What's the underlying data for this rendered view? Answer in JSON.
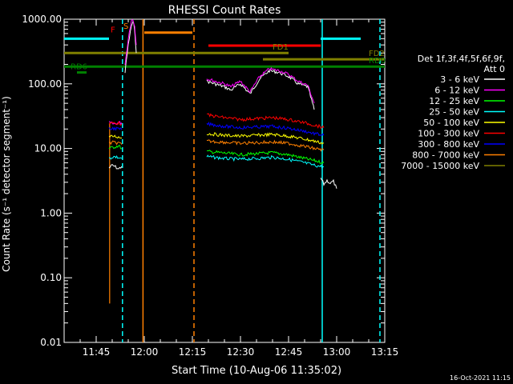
{
  "chart_data": {
    "type": "line",
    "title": "RHESSI Count Rates",
    "xlabel": "Start Time (10-Aug-06 11:35:02)",
    "ylabel": "Count Rate (s⁻¹ detector segment⁻¹)",
    "yscale": "log",
    "ylim": [
      0.01,
      1000
    ],
    "xlim_minutes_after_11_35": [
      0,
      100
    ],
    "x_ticks": [
      {
        "label": "11:45",
        "min": 10
      },
      {
        "label": "12:00",
        "min": 25
      },
      {
        "label": "12:15",
        "min": 40
      },
      {
        "label": "12:30",
        "min": 55
      },
      {
        "label": "12:45",
        "min": 70
      },
      {
        "label": "13:00",
        "min": 85
      },
      {
        "label": "13:15",
        "min": 100
      }
    ],
    "y_ticks": [
      {
        "label": "0.01",
        "v": 0.01
      },
      {
        "label": "0.10",
        "v": 0.1
      },
      {
        "label": "1.00",
        "v": 1
      },
      {
        "label": "10.00",
        "v": 10
      },
      {
        "label": "100.00",
        "v": 100
      },
      {
        "label": "1000.00",
        "v": 1000
      }
    ],
    "legend_header": [
      "Det 1f,3f,4f,5f,6f,9f,",
      "Att 0"
    ],
    "legend_placement": "right",
    "series": [
      {
        "name": "3 - 6 keV",
        "color": "#ffffff",
        "segments": [
          {
            "t": [
              14.0,
              15.0,
              16.0,
              17.0,
              18.0
            ],
            "v": [
              5.0,
              5.5,
              5.2,
              4.8,
              5.3
            ]
          },
          {
            "t": [
              19.0,
              20.0,
              21.0,
              21.5,
              22.0,
              22.5
            ],
            "v": [
              150,
              400,
              800,
              900,
              700,
              300
            ]
          },
          {
            "t": [
              44.5,
              47,
              50,
              52,
              55,
              58,
              61,
              64,
              67,
              70,
              73,
              76,
              78
            ],
            "v": [
              110,
              100,
              90,
              80,
              100,
              70,
              120,
              160,
              150,
              130,
              100,
              90,
              40
            ]
          },
          {
            "t": [
              80,
              81,
              82,
              83,
              84,
              85
            ],
            "v": [
              3.5,
              2.8,
              3.2,
              2.9,
              3.1,
              2.4
            ]
          }
        ]
      },
      {
        "name": "6 - 12 keV",
        "color": "#ff00ff",
        "segments": [
          {
            "t": [
              14.0,
              15.5,
              17.0,
              18.0
            ],
            "v": [
              25,
              24,
              25,
              25
            ]
          },
          {
            "t": [
              19.0,
              20.0,
              21.0,
              21.5,
              22.0,
              22.5
            ],
            "v": [
              200,
              500,
              1000,
              950,
              800,
              400
            ]
          },
          {
            "t": [
              44.5,
              47,
              50,
              52,
              55,
              58,
              61,
              64,
              67,
              70,
              73,
              76,
              78
            ],
            "v": [
              120,
              110,
              100,
              90,
              110,
              75,
              130,
              170,
              160,
              140,
              110,
              95,
              50
            ]
          }
        ]
      },
      {
        "name": "12 - 25 keV",
        "color": "#00ff00",
        "segments": [
          {
            "t": [
              14.0,
              15.5,
              17.0,
              18.0
            ],
            "v": [
              10,
              10.5,
              11,
              10
            ]
          },
          {
            "t": [
              44.5,
              50,
              55,
              60,
              65,
              70,
              75,
              78,
              81
            ],
            "v": [
              9,
              8.5,
              8,
              8.3,
              8.6,
              8,
              7,
              6.5,
              6
            ]
          }
        ]
      },
      {
        "name": "25 - 50 keV",
        "color": "#00ffff",
        "segments": [
          {
            "t": [
              14.0,
              15.5,
              17.0,
              18.0
            ],
            "v": [
              7,
              7.5,
              7.2,
              7
            ]
          },
          {
            "t": [
              44.5,
              50,
              55,
              60,
              65,
              70,
              75,
              78,
              81
            ],
            "v": [
              7.5,
              7,
              6.8,
              7,
              7.3,
              6.8,
              6,
              5.5,
              5.2
            ]
          }
        ]
      },
      {
        "name": "50 - 100 keV",
        "color": "#ffff00",
        "segments": [
          {
            "t": [
              14.0,
              15.5,
              17.0,
              18.0
            ],
            "v": [
              15,
              15.5,
              15,
              14.5
            ]
          },
          {
            "t": [
              44.5,
              50,
              55,
              60,
              65,
              70,
              75,
              78,
              81
            ],
            "v": [
              17,
              16,
              15.5,
              16,
              16.5,
              15.5,
              14,
              13,
              12
            ]
          }
        ]
      },
      {
        "name": "100 - 300 keV",
        "color": "#ff0000",
        "segments": [
          {
            "t": [
              14.0,
              15.5,
              17.0,
              18.0
            ],
            "v": [
              24,
              25,
              24.5,
              24
            ]
          },
          {
            "t": [
              44.5,
              50,
              55,
              60,
              65,
              70,
              75,
              78,
              81
            ],
            "v": [
              33,
              30,
              28,
              29,
              30,
              28,
              25,
              23,
              21
            ]
          }
        ]
      },
      {
        "name": "300 - 800 keV",
        "color": "#0000ff",
        "segments": [
          {
            "t": [
              14.0,
              15.5,
              17.0,
              18.0
            ],
            "v": [
              20,
              20.5,
              20,
              19.5
            ]
          },
          {
            "t": [
              44.5,
              50,
              55,
              60,
              65,
              70,
              75,
              78,
              81
            ],
            "v": [
              24,
              22,
              21,
              21.5,
              22,
              20.5,
              18.5,
              17,
              16
            ]
          }
        ]
      },
      {
        "name": "800 - 7000 keV",
        "color": "#ff8000",
        "segments": [
          {
            "t": [
              14.0,
              15.5,
              17.0,
              18.0
            ],
            "v": [
              12,
              12.5,
              12,
              11.5
            ]
          },
          {
            "t": [
              44.5,
              50,
              55,
              60,
              65,
              70,
              75,
              78,
              81
            ],
            "v": [
              13,
              12.5,
              12,
              12.3,
              12.6,
              12,
              10.8,
              10,
              9.5
            ]
          }
        ]
      },
      {
        "name": "7000 - 15000 keV",
        "color": "#808000",
        "segments": []
      }
    ],
    "flags": [
      {
        "label": "",
        "color": "#00ffff",
        "y": 500,
        "t0": 0,
        "t1": 14
      },
      {
        "label": "",
        "color": "#00ffff",
        "y": 500,
        "t0": 80,
        "t1": 92.5
      },
      {
        "label": "",
        "color": "#ff8000",
        "y": 620,
        "t0": 25,
        "t1": 40
      },
      {
        "label": "",
        "color": "#ff0000",
        "y": 390,
        "t0": 45,
        "t1": 80
      },
      {
        "label": "FD1",
        "color": "#808000",
        "y": 300,
        "t0": 0,
        "t1": 70
      },
      {
        "label": "FD2",
        "color": "#808000",
        "y": 240,
        "t0": 62,
        "t1": 100
      },
      {
        "label": "RD0",
        "color": "#008000",
        "y": 185,
        "t0": 0,
        "t1": 100
      },
      {
        "label": "RD6",
        "color": "#008000",
        "y": 150,
        "t0": 4,
        "t1": 7
      },
      {
        "label": "F",
        "color": "#ff0000",
        "y": 560,
        "t0": 17,
        "t1": 17
      },
      {
        "label": "S",
        "color": "#ff8000",
        "y": 630,
        "t0": 21,
        "t1": 21
      }
    ],
    "vlines": [
      {
        "t": 18.2,
        "color": "#00ffff",
        "style": "dashed"
      },
      {
        "t": 24.6,
        "color": "#ff8000",
        "style": "solid"
      },
      {
        "t": 40.5,
        "color": "#ff8000",
        "style": "dashed"
      },
      {
        "t": 80.5,
        "color": "#00ffff",
        "style": "solid"
      },
      {
        "t": 98.5,
        "color": "#00ffff",
        "style": "dashed"
      }
    ],
    "attenuator_spike": {
      "t": 14.2,
      "v0": 0.04,
      "v1": 25,
      "color": "#ff8000"
    },
    "grid": false
  },
  "footer_timestamp": "16-Oct-2021 11:15"
}
